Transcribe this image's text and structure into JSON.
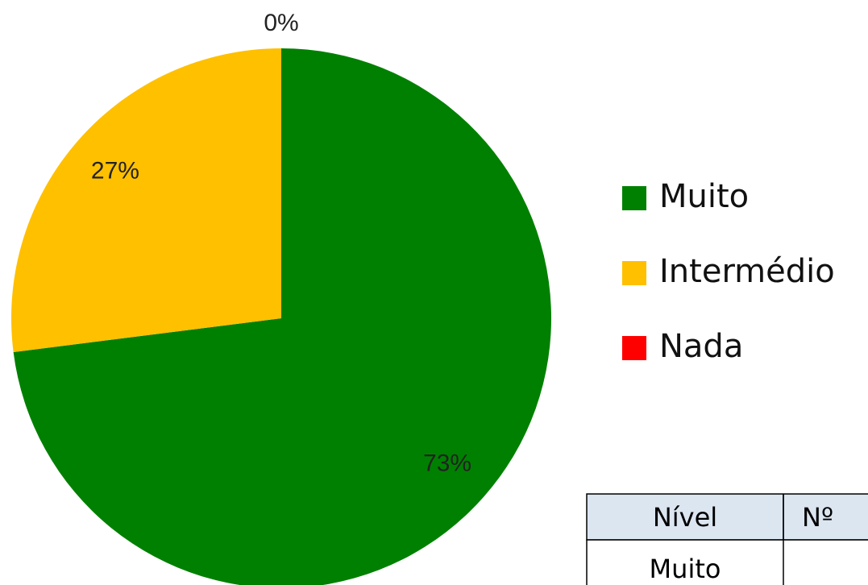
{
  "chart_data": {
    "type": "pie",
    "categories": [
      "Muito",
      "Intermédio",
      "Nada"
    ],
    "values": [
      73,
      27,
      0
    ],
    "value_labels": [
      "73%",
      "27%",
      "0%"
    ],
    "colors": [
      "#008000",
      "#FFC000",
      "#FF0000"
    ]
  },
  "table": {
    "header": [
      "Nível",
      "Nº"
    ],
    "rows": [
      [
        "Muito"
      ]
    ]
  }
}
